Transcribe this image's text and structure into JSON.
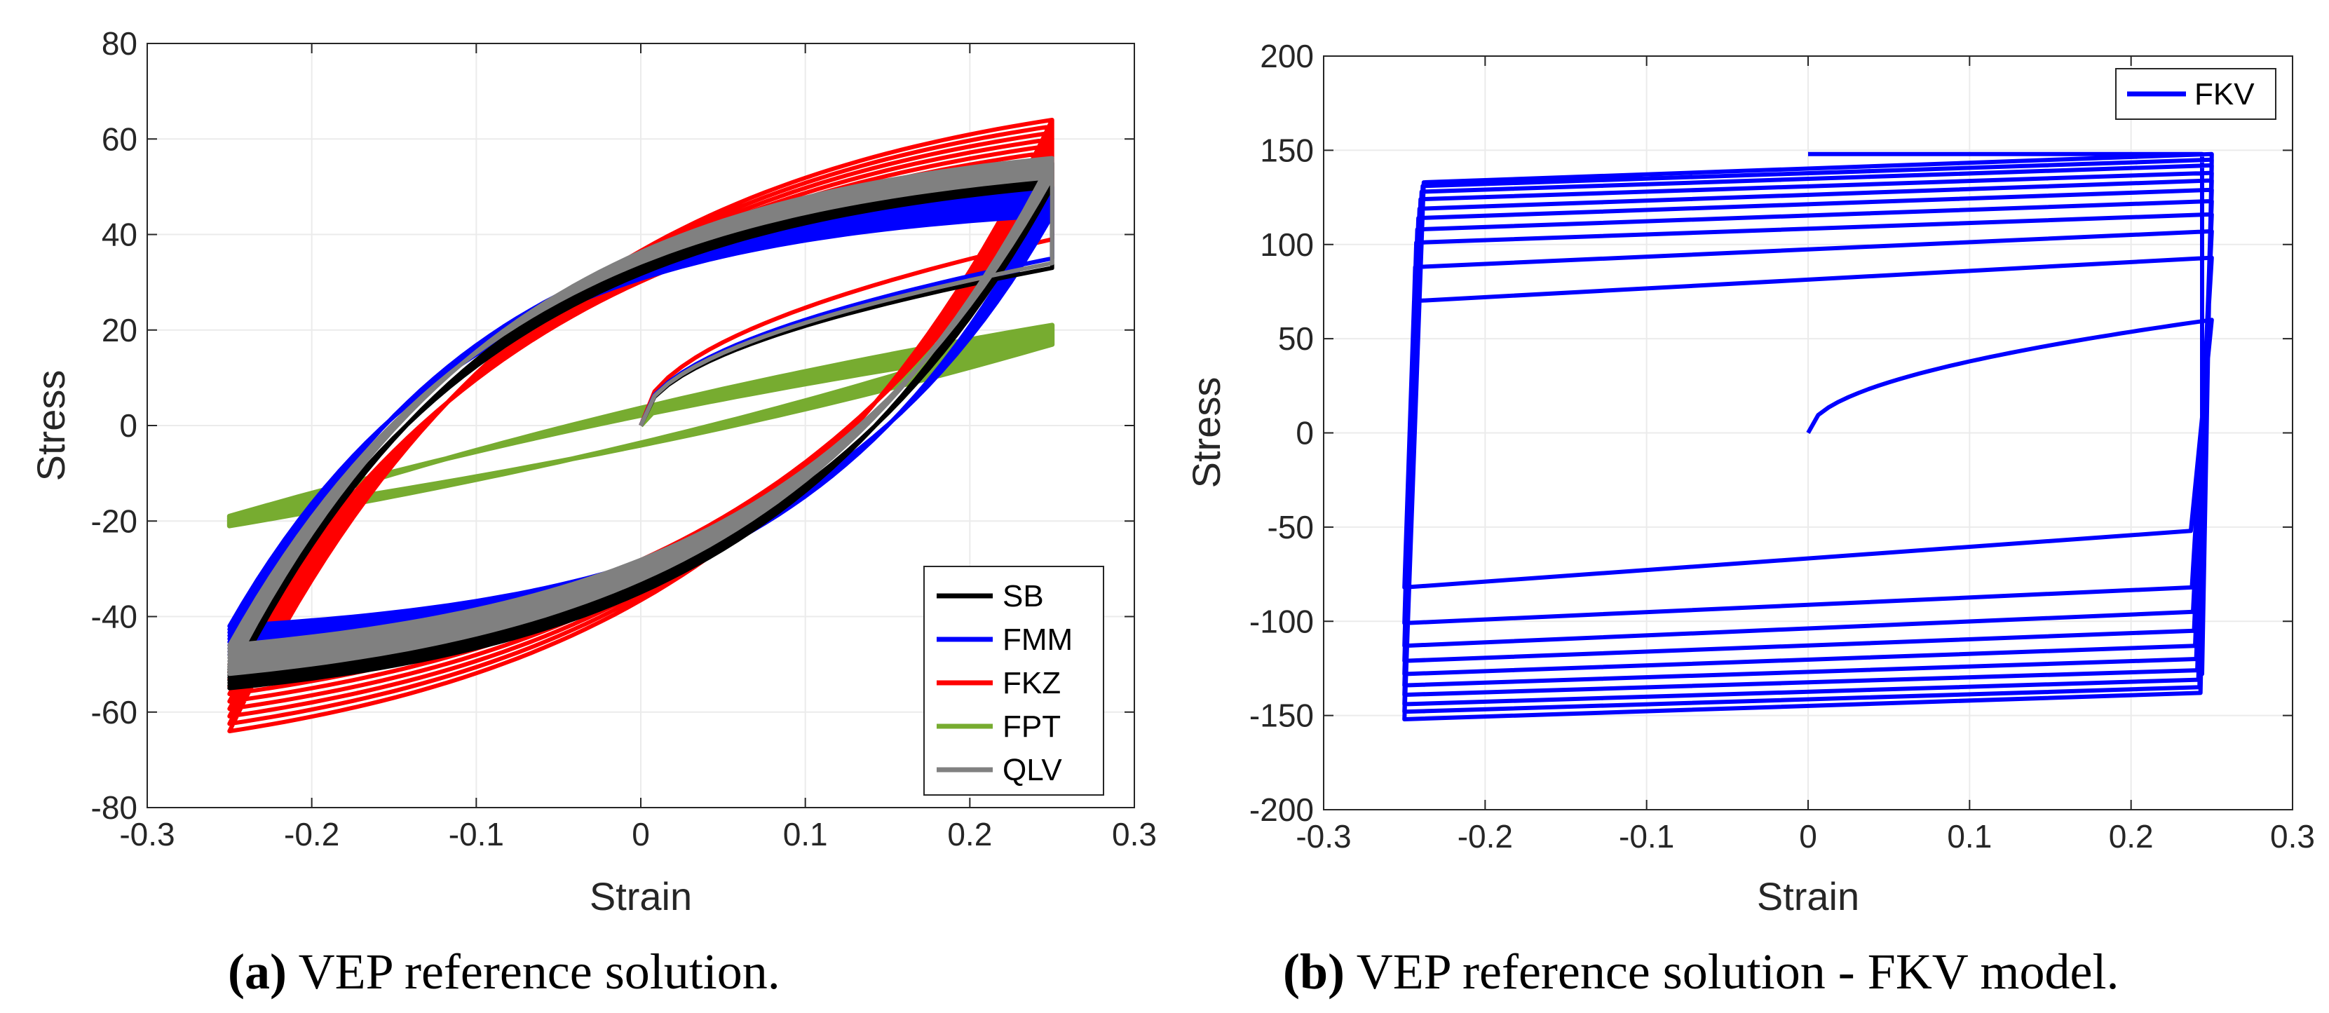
{
  "colors": {
    "SB": "#000000",
    "FMM": "#0000ff",
    "FKZ": "#ff0000",
    "FPT": "#77ac30",
    "QLV": "#808080",
    "FKV": "#0000ff",
    "grid": "#ebebeb",
    "axis": "#262626"
  },
  "chart_data": [
    {
      "id": "a",
      "type": "line",
      "subtype": "hysteresis loops (cyclic strain -0.25..0.25, ~10 cycles)",
      "xlabel": "Strain",
      "ylabel": "Stress",
      "xlim": [
        -0.3,
        0.3
      ],
      "ylim": [
        -80,
        80
      ],
      "xticks": [
        -0.3,
        -0.2,
        -0.1,
        0,
        0.1,
        0.2,
        0.3
      ],
      "yticks": [
        -80,
        -60,
        -40,
        -20,
        0,
        20,
        40,
        60,
        80
      ],
      "xtick_labels": [
        "-0.3",
        "-0.2",
        "-0.1",
        "0",
        "0.1",
        "0.2",
        "0.3"
      ],
      "ytick_labels": [
        "-80",
        "-60",
        "-40",
        "-20",
        "0",
        "20",
        "40",
        "60",
        "80"
      ],
      "grid": true,
      "legend_position": "bottom-right",
      "legend": [
        "SB",
        "FMM",
        "FKZ",
        "FPT",
        "QLV"
      ],
      "series": [
        {
          "name": "SB",
          "strain_amplitude": 0.25,
          "first_peak_stress": 33,
          "peak_stress_range": [
            50,
            55
          ],
          "valley_stress_range": [
            -50,
            -55
          ],
          "stress_at_zero_strain_loading": 30
        },
        {
          "name": "FMM",
          "strain_amplitude": 0.25,
          "first_peak_stress": 35,
          "peak_stress_range": [
            44,
            50
          ],
          "valley_stress_range": [
            -42,
            -48
          ],
          "stress_at_zero_strain_loading": 28
        },
        {
          "name": "FKZ",
          "strain_amplitude": 0.25,
          "first_peak_stress": 39,
          "peak_stress_range": [
            52,
            64
          ],
          "valley_stress_range": [
            -50,
            -64
          ],
          "stress_at_zero_strain_loading": 38
        },
        {
          "name": "FPT",
          "strain_amplitude": 0.25,
          "first_peak_stress": 17,
          "peak_stress_range": [
            17,
            21
          ],
          "valley_stress_range": [
            -19,
            -21
          ],
          "stress_at_zero_strain_loading": 4
        },
        {
          "name": "QLV",
          "strain_amplitude": 0.25,
          "first_peak_stress": 34,
          "peak_stress_range": [
            52,
            56
          ],
          "valley_stress_range": [
            -46,
            -52
          ],
          "stress_at_zero_strain_loading": 29
        }
      ],
      "caption_label": "(a)",
      "caption_text": " VEP reference solution."
    },
    {
      "id": "b",
      "type": "line",
      "subtype": "hysteresis loops (cyclic strain -0.25..0.25, ~10 cycles)",
      "xlabel": "Strain",
      "ylabel": "Stress",
      "xlim": [
        -0.3,
        0.3
      ],
      "ylim": [
        -200,
        200
      ],
      "xticks": [
        -0.3,
        -0.2,
        -0.1,
        0,
        0.1,
        0.2,
        0.3
      ],
      "yticks": [
        -200,
        -150,
        -100,
        -50,
        0,
        50,
        100,
        150,
        200
      ],
      "xtick_labels": [
        "-0.3",
        "-0.2",
        "-0.1",
        "0",
        "0.1",
        "0.2",
        "0.3"
      ],
      "ytick_labels": [
        "-200",
        "-150",
        "-100",
        "-50",
        "0",
        "50",
        "100",
        "150",
        "200"
      ],
      "grid": true,
      "legend_position": "top-right",
      "legend": [
        "FKV"
      ],
      "series": [
        {
          "name": "FKV",
          "strain_amplitude": 0.25,
          "first_loading_peak": 60,
          "upper_plateau_stress": [
            70,
            88,
            101,
            108,
            114,
            119,
            124,
            128,
            131,
            133
          ],
          "upper_plateau_end_stress": [
            93,
            107,
            116,
            123,
            129,
            134,
            138,
            142,
            145,
            148
          ],
          "lower_plateau_stress": [
            -52,
            -82,
            -95,
            -105,
            -113,
            -120,
            -126,
            -131,
            -135,
            -138
          ],
          "lower_plateau_end_stress": [
            -82,
            -101,
            -113,
            -121,
            -128,
            -134,
            -139,
            -144,
            -148,
            -152
          ],
          "final_stress_at_zero_strain": 148
        }
      ],
      "caption_label": "(b)",
      "caption_text": " VEP reference solution - FKV model."
    }
  ]
}
